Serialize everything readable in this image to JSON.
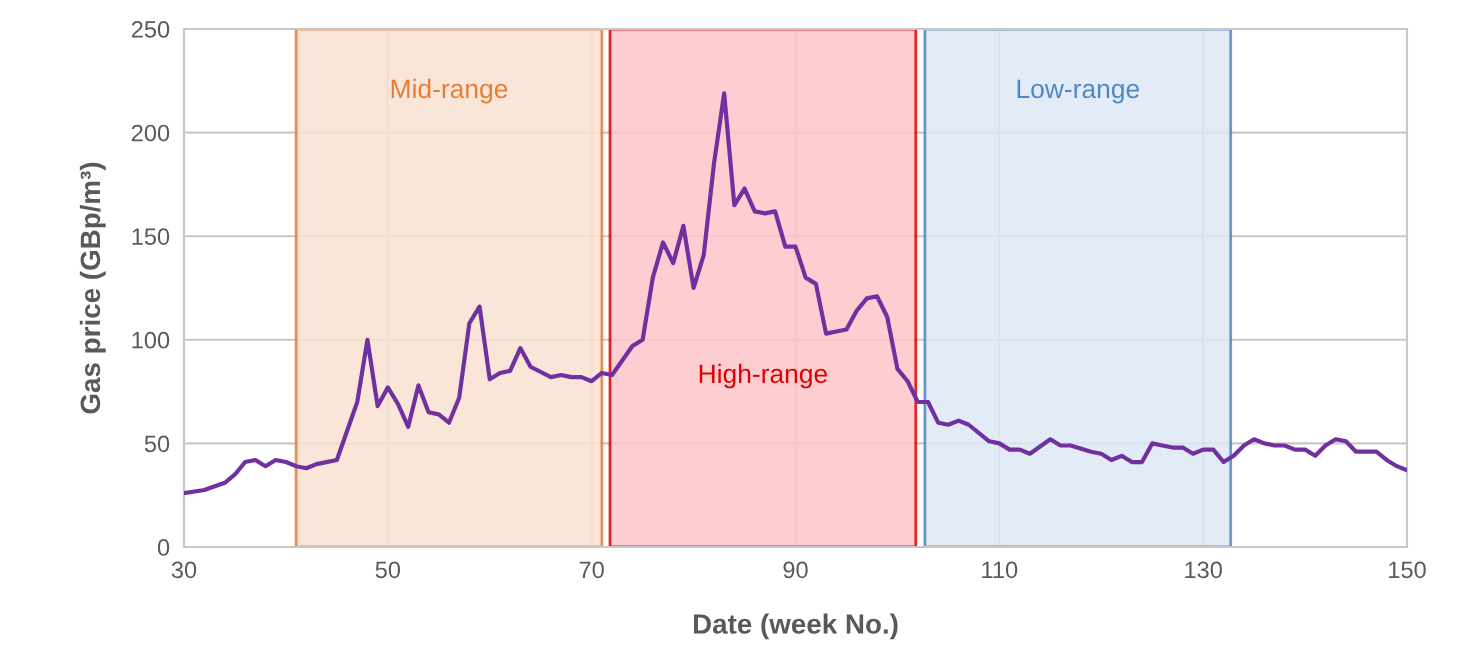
{
  "chart_data": {
    "type": "line",
    "xlabel": "Date (week No.)",
    "ylabel": "Gas price (GBp/m³)",
    "x": [
      30,
      32,
      34,
      35,
      36,
      37,
      38,
      39,
      40,
      41,
      42,
      43,
      45,
      47,
      48,
      49,
      50,
      51,
      52,
      53,
      54,
      55,
      56,
      57,
      58,
      59,
      60,
      61,
      62,
      63,
      64,
      66,
      67,
      68,
      69,
      70,
      71,
      72,
      74,
      75,
      76,
      77,
      78,
      79,
      80,
      81,
      82,
      83,
      84,
      85,
      86,
      87,
      88,
      89,
      90,
      91,
      92,
      93,
      94,
      95,
      96,
      97,
      98,
      99,
      100,
      101,
      102,
      103,
      104,
      105,
      106,
      107,
      109,
      110,
      111,
      112,
      113,
      115,
      116,
      117,
      119,
      120,
      121,
      122,
      123,
      124,
      125,
      126,
      127,
      128,
      129,
      130,
      131,
      132,
      133,
      134,
      135,
      136,
      137,
      138,
      139,
      140,
      141,
      142,
      143,
      144,
      145,
      146,
      147,
      148,
      149,
      150
    ],
    "series": [
      {
        "color": "#7030a0",
        "values": [
          26,
          27.5,
          31,
          35,
          41,
          42,
          39,
          42,
          41,
          39,
          38,
          40,
          42,
          70,
          100,
          68,
          77,
          69,
          58,
          78,
          65,
          64,
          60,
          72,
          108,
          116,
          81,
          84,
          85,
          96,
          87,
          82,
          83,
          82,
          82,
          80,
          84,
          83,
          97,
          100,
          130,
          147,
          137,
          155,
          125,
          141,
          185,
          219,
          165,
          173,
          162,
          161,
          162,
          145,
          145,
          130,
          127,
          103,
          104,
          105,
          114,
          120,
          121,
          111,
          86,
          80,
          70,
          70,
          60,
          59,
          61,
          59,
          51,
          50,
          47,
          47,
          45,
          52,
          49,
          49,
          46,
          45,
          42,
          44,
          41,
          41,
          50,
          49,
          48,
          48,
          45,
          47,
          47,
          41,
          44,
          49,
          52,
          50,
          49,
          49,
          47,
          47,
          44,
          49,
          52,
          51,
          46,
          46,
          46,
          42,
          39,
          37
        ]
      }
    ],
    "xlim": [
      30,
      150
    ],
    "xticks": [
      30,
      50,
      70,
      90,
      110,
      130,
      150
    ],
    "ylim": [
      0,
      250
    ],
    "yticks": [
      0,
      50,
      100,
      150,
      200,
      250
    ],
    "grid": true,
    "marker": "none",
    "line_style": "solid",
    "bands": [
      {
        "axis": "x",
        "from": 41,
        "to": 71,
        "label": "Mid-range",
        "color": "#e57e35"
      },
      {
        "axis": "x",
        "from": 71.8,
        "to": 101.8,
        "label": "High-range",
        "color": "#e00000"
      },
      {
        "axis": "x",
        "from": 102.7,
        "to": 132.7,
        "label": "Low-range",
        "color": "#4f86c6"
      }
    ]
  }
}
